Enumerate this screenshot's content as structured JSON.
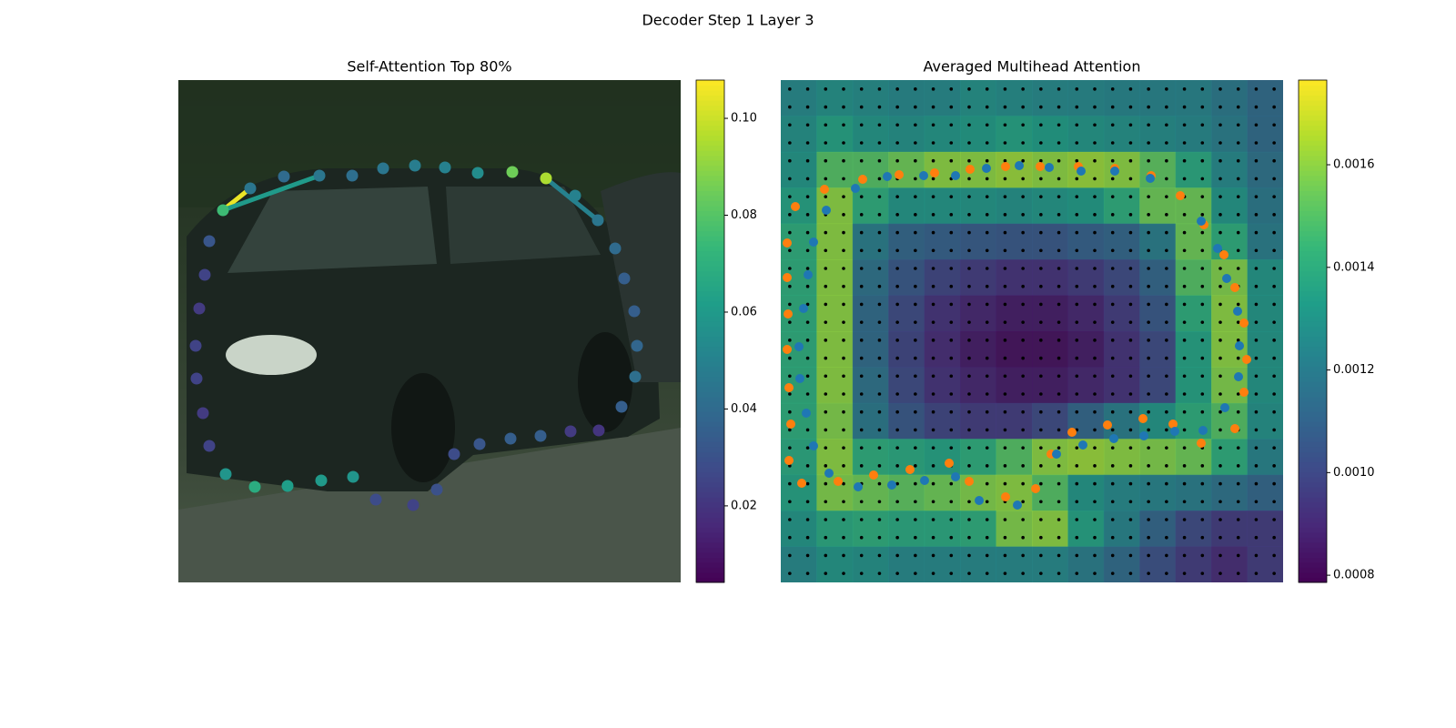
{
  "title": "Decoder Step 1 Layer 3",
  "chart_data": [
    {
      "type": "scatter",
      "title": "Self-Attention Top 80%",
      "colormap": "viridis",
      "xlim": [
        0,
        552
      ],
      "ylim": [
        552,
        0
      ],
      "x": [
        49,
        79,
        116,
        155,
        191,
        225,
        260,
        293,
        329,
        367,
        404,
        436,
        461,
        480,
        490,
        501,
        504,
        502,
        487,
        462,
        431,
        398,
        365,
        331,
        303,
        284,
        258,
        217,
        192,
        157,
        120,
        84,
        52,
        34,
        27,
        20,
        19,
        23,
        29,
        34
      ],
      "y": [
        143,
        119,
        106,
        105,
        105,
        97,
        94,
        96,
        102,
        101,
        108,
        127,
        154,
        185,
        218,
        254,
        292,
        326,
        359,
        385,
        386,
        391,
        394,
        400,
        411,
        450,
        467,
        461,
        436,
        440,
        446,
        447,
        433,
        402,
        366,
        328,
        292,
        251,
        214,
        177
      ],
      "values": [
        0.075,
        0.045,
        0.04,
        0.045,
        0.042,
        0.045,
        0.048,
        0.05,
        0.055,
        0.085,
        0.095,
        0.05,
        0.045,
        0.04,
        0.035,
        0.035,
        0.038,
        0.042,
        0.035,
        0.02,
        0.022,
        0.035,
        0.035,
        0.032,
        0.028,
        0.03,
        0.025,
        0.028,
        0.058,
        0.06,
        0.062,
        0.068,
        0.058,
        0.025,
        0.022,
        0.025,
        0.025,
        0.022,
        0.025,
        0.032
      ],
      "links": [
        {
          "from": 0,
          "to": 1,
          "value": 0.105
        },
        {
          "from": 0,
          "to": 3,
          "value": 0.06
        },
        {
          "from": 10,
          "to": 12,
          "value": 0.05
        }
      ],
      "clim": [
        0.0042,
        0.1079
      ],
      "cticks": [
        0.02,
        0.04,
        0.06,
        0.08,
        {
          "value": 0.1,
          "label": "0.10"
        }
      ]
    },
    {
      "type": "heatmap",
      "title": "Averaged Multihead Attention",
      "colormap": "viridis",
      "xlim": [
        0,
        552
      ],
      "ylim": [
        552,
        0
      ],
      "z": [
        [
          0.00125,
          0.00128,
          0.00126,
          0.00124,
          0.00125,
          0.00128,
          0.00126,
          0.00125,
          0.00124,
          0.00123,
          0.00122,
          0.00122,
          0.00118,
          0.00112
        ],
        [
          0.00128,
          0.00135,
          0.0013,
          0.00128,
          0.0013,
          0.00132,
          0.00135,
          0.00133,
          0.0013,
          0.00128,
          0.00126,
          0.00124,
          0.0012,
          0.00112
        ],
        [
          0.0013,
          0.0015,
          0.0015,
          0.00155,
          0.0016,
          0.0016,
          0.00162,
          0.0016,
          0.00162,
          0.0016,
          0.00152,
          0.00138,
          0.00125,
          0.00115
        ],
        [
          0.00135,
          0.0016,
          0.0014,
          0.0013,
          0.0013,
          0.0013,
          0.00128,
          0.0013,
          0.00132,
          0.0014,
          0.00155,
          0.00155,
          0.0013,
          0.00118
        ],
        [
          0.0014,
          0.0016,
          0.0012,
          0.0011,
          0.00108,
          0.00106,
          0.00105,
          0.00105,
          0.00108,
          0.0011,
          0.0012,
          0.00155,
          0.0014,
          0.0012
        ],
        [
          0.0014,
          0.0016,
          0.00115,
          0.00105,
          0.00098,
          0.00095,
          0.00092,
          0.00092,
          0.00095,
          0.001,
          0.0011,
          0.0015,
          0.00158,
          0.0013
        ],
        [
          0.0014,
          0.0016,
          0.00112,
          0.001,
          0.00092,
          0.00088,
          0.00085,
          0.00085,
          0.00088,
          0.00095,
          0.00105,
          0.0014,
          0.0016,
          0.0013
        ],
        [
          0.0014,
          0.0016,
          0.00112,
          0.00098,
          0.0009,
          0.00085,
          0.00082,
          0.00082,
          0.00085,
          0.00092,
          0.001,
          0.00135,
          0.0016,
          0.0013
        ],
        [
          0.0014,
          0.0016,
          0.00115,
          0.001,
          0.00092,
          0.00088,
          0.00085,
          0.00085,
          0.00088,
          0.00092,
          0.001,
          0.00135,
          0.00158,
          0.0013
        ],
        [
          0.0014,
          0.00158,
          0.00118,
          0.00105,
          0.00098,
          0.00095,
          0.00095,
          0.001,
          0.0011,
          0.0012,
          0.0013,
          0.0014,
          0.0015,
          0.00128
        ],
        [
          0.00138,
          0.0016,
          0.0014,
          0.00138,
          0.00135,
          0.0014,
          0.0015,
          0.0016,
          0.00162,
          0.0016,
          0.00158,
          0.00155,
          0.0014,
          0.00122
        ],
        [
          0.00135,
          0.00158,
          0.00155,
          0.00152,
          0.00155,
          0.00158,
          0.0016,
          0.0015,
          0.0013,
          0.00125,
          0.00122,
          0.0012,
          0.00115,
          0.0011
        ],
        [
          0.0013,
          0.00138,
          0.0014,
          0.00138,
          0.00138,
          0.0014,
          0.00158,
          0.0016,
          0.00135,
          0.00122,
          0.0011,
          0.001,
          0.00095,
          0.00095
        ],
        [
          0.00125,
          0.0013,
          0.00128,
          0.00125,
          0.00125,
          0.00125,
          0.00125,
          0.00125,
          0.0012,
          0.00112,
          0.00102,
          0.00095,
          0.0009,
          0.00095
        ]
      ],
      "clim": [
        0.000786,
        0.001765
      ],
      "cticks": [
        0.0008,
        {
          "value": 0.001,
          "label": "0.0010"
        },
        0.0012,
        0.0014,
        0.0016
      ],
      "series": [
        {
          "color": "#ff7f0e",
          "x": [
            7,
            16,
            48,
            90,
            130,
            169,
            208,
            247,
            285,
            327,
            367,
            407,
            439,
            465,
            487,
            499,
            509,
            512,
            509,
            499,
            462,
            431,
            398,
            359,
            320,
            297,
            280,
            247,
            207,
            185,
            142,
            102,
            63,
            23,
            9,
            11,
            9,
            7,
            8,
            7
          ],
          "y": [
            179,
            139,
            120,
            109,
            104,
            102,
            98,
            95,
            95,
            95,
            97,
            105,
            127,
            159,
            192,
            228,
            267,
            307,
            343,
            383,
            399,
            378,
            372,
            379,
            387,
            411,
            449,
            458,
            441,
            421,
            428,
            434,
            441,
            443,
            418,
            378,
            338,
            296,
            257,
            217
          ]
        },
        {
          "color": "#1f77b4",
          "x": [
            36,
            50,
            82,
            117,
            157,
            192,
            226,
            262,
            295,
            330,
            367,
            406,
            462,
            480,
            490,
            502,
            504,
            503,
            488,
            464,
            433,
            399,
            366,
            332,
            303,
            260,
            218,
            192,
            158,
            122,
            85,
            53,
            36,
            28,
            21,
            20,
            25,
            30
          ],
          "y": [
            178,
            143,
            119,
            106,
            105,
            105,
            97,
            94,
            96,
            100,
            100,
            108,
            155,
            185,
            218,
            254,
            292,
            326,
            360,
            385,
            386,
            391,
            394,
            401,
            411,
            467,
            462,
            436,
            440,
            445,
            447,
            432,
            402,
            366,
            328,
            293,
            251,
            214
          ]
        }
      ]
    }
  ]
}
